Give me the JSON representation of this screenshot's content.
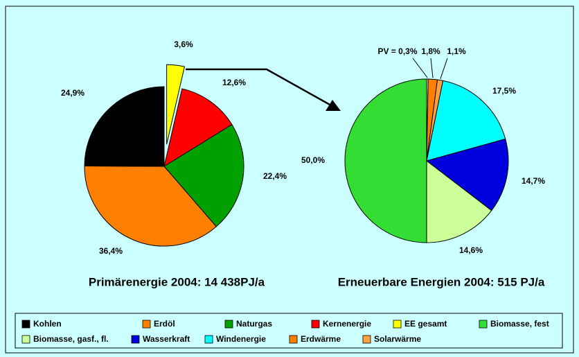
{
  "chart_data": [
    {
      "type": "pie",
      "title": "Primärenergie 2004:  14 438PJ/a",
      "values": [
        3.6,
        12.6,
        22.4,
        36.4,
        24.9
      ],
      "value_labels": [
        "3,6%",
        "12,6%",
        "22,4%",
        "36,4%",
        "24,9%"
      ],
      "colors": [
        "#ffff00",
        "#ff0000",
        "#00a000",
        "#ff8000",
        "#000000"
      ],
      "explode": [
        true,
        false,
        false,
        false,
        false
      ]
    },
    {
      "type": "pie",
      "title": "Erneuerbare Energien 2004:  515 PJ/a",
      "values": [
        0.3,
        1.8,
        1.1,
        17.5,
        14.7,
        14.6,
        50.0
      ],
      "value_labels": [
        "PV = 0,3%",
        "1,8%",
        "1,1%",
        "17,5%",
        "14,7%",
        "14,6%",
        "50,0%"
      ],
      "colors": [
        "#ffffff",
        "#ff8000",
        "#ffa040",
        "#00ffff",
        "#0000dd",
        "#ccff99",
        "#33dd33"
      ],
      "explode": [
        false,
        false,
        false,
        false,
        false,
        false,
        false
      ]
    }
  ],
  "legend": [
    {
      "name": "Kohlen",
      "color": "#000000"
    },
    {
      "name": "Erdöl",
      "color": "#ff8000"
    },
    {
      "name": "Naturgas",
      "color": "#00a000"
    },
    {
      "name": "Kernenergie",
      "color": "#ff0000"
    },
    {
      "name": "EE gesamt",
      "color": "#ffff00"
    },
    {
      "name": "Biomasse, fest",
      "color": "#33dd33"
    },
    {
      "name": "Biomasse, gasf., fl.",
      "color": "#ccff99"
    },
    {
      "name": "Wasserkraft",
      "color": "#0000dd"
    },
    {
      "name": "Windenergie",
      "color": "#00ffff"
    },
    {
      "name": "Erdwärme",
      "color": "#ff8000"
    },
    {
      "name": "Solarwärme",
      "color": "#ffa040"
    }
  ]
}
